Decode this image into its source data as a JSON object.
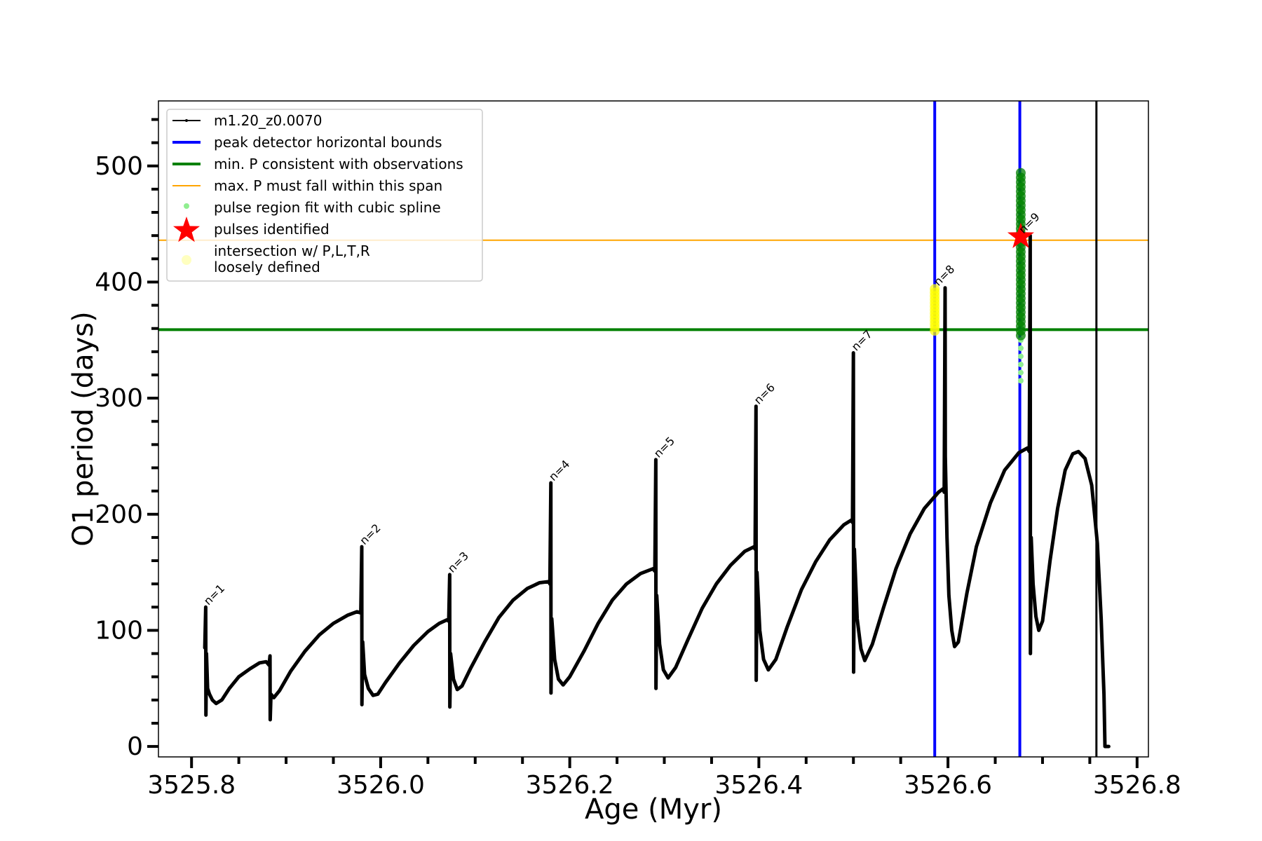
{
  "chart_data": {
    "type": "line",
    "title": "",
    "xlabel": "Age (Myr)",
    "ylabel": "O1 period (days)",
    "xlim": [
      3525.765,
      3526.812
    ],
    "ylim": [
      -9,
      556
    ],
    "x_ticks": [
      3525.8,
      3526.0,
      3526.2,
      3526.4,
      3526.6,
      3526.8
    ],
    "x_tick_labels": [
      "3525.8",
      "3526.0",
      "3526.2",
      "3526.4",
      "3526.6",
      "3526.8"
    ],
    "x_minor_step": 0.05,
    "y_ticks": [
      0,
      100,
      200,
      300,
      400,
      500
    ],
    "y_tick_labels": [
      "0",
      "100",
      "200",
      "300",
      "400",
      "500"
    ],
    "y_minor_step": 20,
    "grid": false,
    "legend_position": "top-left",
    "colors": {
      "model": "#000000",
      "peak_bounds": "#0000ff",
      "min_p": "#008000",
      "max_p": "#ffa500",
      "spline": "#90ee90",
      "star": "#ff0000",
      "loose": "#ffff00",
      "green_dots": "#008000"
    },
    "legend": [
      {
        "label": "m1.20_z0.0070",
        "kind": "line-dot",
        "color": "#000000"
      },
      {
        "label": "peak detector horizontal bounds",
        "kind": "line-thick",
        "color": "#0000ff"
      },
      {
        "label": "min. P consistent with observations",
        "kind": "line-thick",
        "color": "#008000"
      },
      {
        "label": "max. P must fall within this span",
        "kind": "line-thin",
        "color": "#ffa500"
      },
      {
        "label": "pulse region fit with cubic spline",
        "kind": "dot",
        "color": "#90ee90"
      },
      {
        "label": "pulses identified",
        "kind": "star",
        "color": "#ff0000"
      },
      {
        "label": "intersection w/ P,L,T,R",
        "label2": "loosely defined",
        "kind": "dot-big",
        "color": "#ffffc0"
      }
    ],
    "series": [
      {
        "name": "m1.20_z0.0070",
        "points": [
          [
            3525.814,
            85
          ],
          [
            3525.815,
            120
          ],
          [
            3525.8152,
            27
          ],
          [
            3525.8158,
            80
          ],
          [
            3525.817,
            50
          ],
          [
            3525.819,
            45
          ],
          [
            3525.822,
            40
          ],
          [
            3525.826,
            37
          ],
          [
            3525.832,
            40
          ],
          [
            3525.84,
            50
          ],
          [
            3525.85,
            60
          ],
          [
            3525.862,
            67
          ],
          [
            3525.872,
            72
          ],
          [
            3525.879,
            73
          ],
          [
            3525.882,
            70
          ],
          [
            3525.883,
            78
          ],
          [
            3525.8832,
            23
          ],
          [
            3525.884,
            45
          ],
          [
            3525.887,
            42
          ],
          [
            3525.893,
            48
          ],
          [
            3525.905,
            65
          ],
          [
            3525.92,
            82
          ],
          [
            3525.935,
            96
          ],
          [
            3525.95,
            106
          ],
          [
            3525.965,
            113
          ],
          [
            3525.975,
            116
          ],
          [
            3525.979,
            115
          ],
          [
            3525.98,
            172
          ],
          [
            3525.9802,
            36
          ],
          [
            3525.981,
            90
          ],
          [
            3525.983,
            62
          ],
          [
            3525.987,
            50
          ],
          [
            3525.992,
            44
          ],
          [
            3525.997,
            45
          ],
          [
            3526.005,
            55
          ],
          [
            3526.02,
            72
          ],
          [
            3526.035,
            87
          ],
          [
            3526.05,
            99
          ],
          [
            3526.062,
            106
          ],
          [
            3526.07,
            109
          ],
          [
            3526.072,
            108
          ],
          [
            3526.073,
            148
          ],
          [
            3526.0732,
            34
          ],
          [
            3526.074,
            80
          ],
          [
            3526.077,
            58
          ],
          [
            3526.081,
            49
          ],
          [
            3526.086,
            52
          ],
          [
            3526.095,
            67
          ],
          [
            3526.11,
            90
          ],
          [
            3526.125,
            111
          ],
          [
            3526.14,
            126
          ],
          [
            3526.155,
            136
          ],
          [
            3526.168,
            141
          ],
          [
            3526.178,
            142
          ],
          [
            3526.179,
            140
          ],
          [
            3526.18,
            227
          ],
          [
            3526.1802,
            46
          ],
          [
            3526.181,
            110
          ],
          [
            3526.184,
            75
          ],
          [
            3526.188,
            58
          ],
          [
            3526.193,
            53
          ],
          [
            3526.2,
            60
          ],
          [
            3526.215,
            82
          ],
          [
            3526.23,
            106
          ],
          [
            3526.245,
            126
          ],
          [
            3526.26,
            140
          ],
          [
            3526.275,
            149
          ],
          [
            3526.288,
            153
          ],
          [
            3526.29,
            151
          ],
          [
            3526.291,
            247
          ],
          [
            3526.2912,
            50
          ],
          [
            3526.292,
            130
          ],
          [
            3526.295,
            88
          ],
          [
            3526.299,
            66
          ],
          [
            3526.304,
            59
          ],
          [
            3526.312,
            68
          ],
          [
            3526.325,
            92
          ],
          [
            3526.34,
            119
          ],
          [
            3526.355,
            140
          ],
          [
            3526.37,
            156
          ],
          [
            3526.385,
            168
          ],
          [
            3526.395,
            172
          ],
          [
            3526.396,
            170
          ],
          [
            3526.397,
            293
          ],
          [
            3526.3972,
            57
          ],
          [
            3526.398,
            150
          ],
          [
            3526.401,
            100
          ],
          [
            3526.405,
            75
          ],
          [
            3526.41,
            66
          ],
          [
            3526.418,
            75
          ],
          [
            3526.43,
            103
          ],
          [
            3526.445,
            135
          ],
          [
            3526.46,
            159
          ],
          [
            3526.475,
            178
          ],
          [
            3526.49,
            191
          ],
          [
            3526.498,
            195
          ],
          [
            3526.499,
            193
          ],
          [
            3526.5,
            339
          ],
          [
            3526.5002,
            64
          ],
          [
            3526.501,
            170
          ],
          [
            3526.504,
            110
          ],
          [
            3526.508,
            84
          ],
          [
            3526.512,
            74
          ],
          [
            3526.52,
            88
          ],
          [
            3526.532,
            120
          ],
          [
            3526.545,
            153
          ],
          [
            3526.56,
            183
          ],
          [
            3526.575,
            205
          ],
          [
            3526.59,
            219
          ],
          [
            3526.595,
            222
          ],
          [
            3526.596,
            219
          ],
          [
            3526.597,
            395
          ],
          [
            3526.5972,
            250
          ],
          [
            3526.599,
            180
          ],
          [
            3526.601,
            130
          ],
          [
            3526.604,
            100
          ],
          [
            3526.607,
            86
          ],
          [
            3526.611,
            90
          ],
          [
            3526.62,
            132
          ],
          [
            3526.63,
            172
          ],
          [
            3526.645,
            210
          ],
          [
            3526.66,
            238
          ],
          [
            3526.675,
            253
          ],
          [
            3526.684,
            257
          ],
          [
            3526.686,
            254
          ],
          [
            3526.687,
            440
          ],
          [
            3526.6872,
            80
          ],
          [
            3526.688,
            180
          ],
          [
            3526.69,
            140
          ],
          [
            3526.693,
            112
          ],
          [
            3526.696,
            100
          ],
          [
            3526.7,
            108
          ],
          [
            3526.708,
            160
          ],
          [
            3526.716,
            205
          ],
          [
            3526.724,
            238
          ],
          [
            3526.732,
            252
          ],
          [
            3526.738,
            254
          ],
          [
            3526.745,
            248
          ],
          [
            3526.752,
            225
          ],
          [
            3526.758,
            175
          ],
          [
            3526.762,
            110
          ],
          [
            3526.765,
            45
          ],
          [
            3526.766,
            0
          ],
          [
            3526.77,
            0
          ]
        ]
      }
    ],
    "peak_detector_bounds": [
      3526.586,
      3526.676
    ],
    "end_marker_x": 3526.757,
    "min_P": 359,
    "max_P": 436,
    "pulse_labels": [
      {
        "label": "n=1",
        "x": 3525.815,
        "y": 120
      },
      {
        "label": "n=2",
        "x": 3525.98,
        "y": 172
      },
      {
        "label": "n=3",
        "x": 3526.073,
        "y": 148
      },
      {
        "label": "n=4",
        "x": 3526.18,
        "y": 227
      },
      {
        "label": "n=5",
        "x": 3526.291,
        "y": 247
      },
      {
        "label": "n=6",
        "x": 3526.397,
        "y": 293
      },
      {
        "label": "n=7",
        "x": 3526.5,
        "y": 339
      },
      {
        "label": "n=8",
        "x": 3526.587,
        "y": 395
      },
      {
        "label": "n=9",
        "x": 3526.677,
        "y": 440
      }
    ],
    "loose_intersection": {
      "x": 3526.586,
      "y_from": 358,
      "y_to": 396
    },
    "spline_points": {
      "x": 3526.677,
      "y_from": 315,
      "y_to": 495
    },
    "consistent_points": {
      "x": 3526.677,
      "y_from": 354,
      "y_to": 495
    },
    "pulse_identified": {
      "x": 3526.677,
      "y": 439
    }
  }
}
